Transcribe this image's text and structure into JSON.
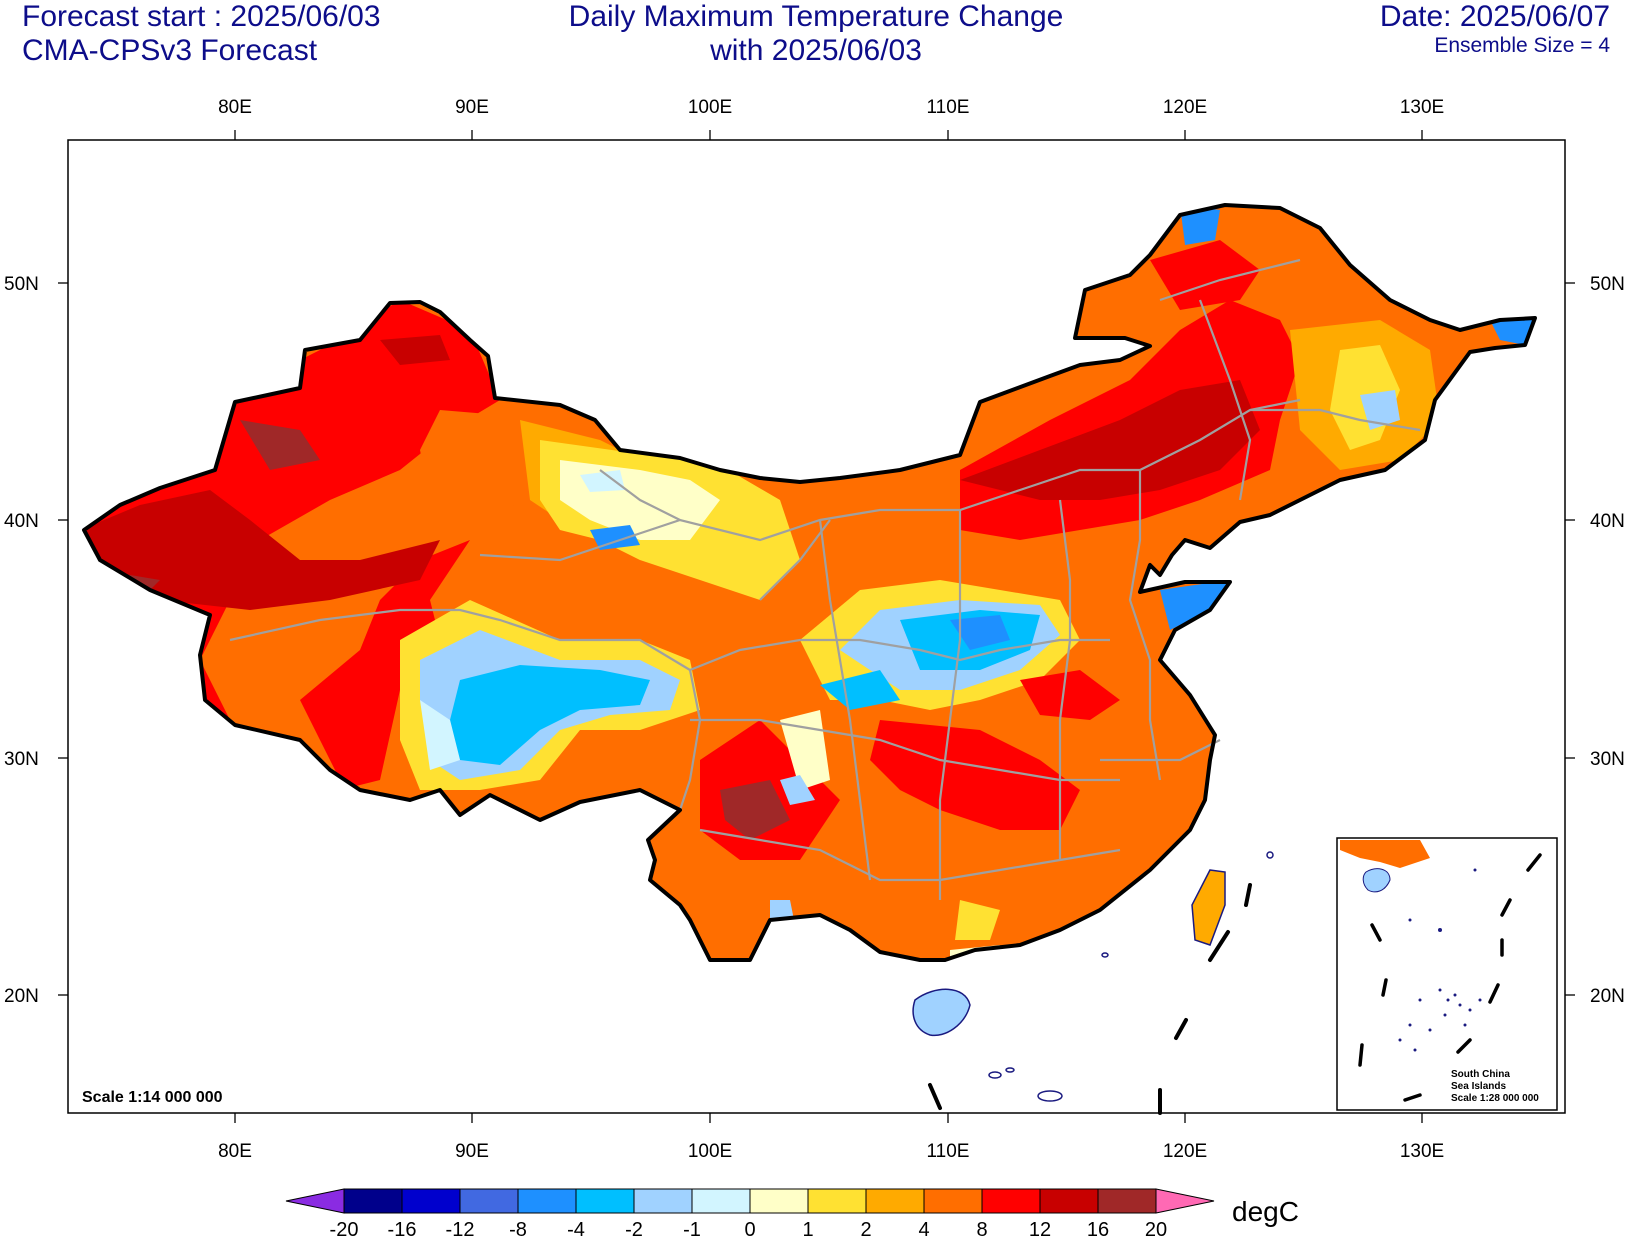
{
  "header": {
    "left_line1": "Forecast start : 2025/06/03",
    "left_line2": "CMA-CPSv3 Forecast",
    "title_line1": "Daily Maximum Temperature Change",
    "title_line2": "with 2025/06/03",
    "date": "Date: 2025/06/07",
    "ensemble": "Ensemble Size = 4"
  },
  "axes": {
    "lon_ticks": [
      "80E",
      "90E",
      "100E",
      "110E",
      "120E",
      "130E"
    ],
    "lat_ticks": [
      "50N",
      "40N",
      "30N",
      "20N"
    ]
  },
  "scale_main": "Scale 1:14 000 000",
  "inset": {
    "line1": "South China",
    "line2": "Sea Islands",
    "line3": "Scale 1:28 000 000"
  },
  "colorbar": {
    "units": "degC",
    "labels": [
      "-20",
      "-16",
      "-12",
      "-8",
      "-4",
      "-2",
      "-1",
      "0",
      "1",
      "2",
      "4",
      "8",
      "12",
      "16",
      "20"
    ],
    "colors": [
      "#8a2be2",
      "#00008b",
      "#0000cd",
      "#4169e1",
      "#1e90ff",
      "#00bfff",
      "#a0d2ff",
      "#d2f5ff",
      "#ffffc8",
      "#ffe132",
      "#ffaa00",
      "#ff6e00",
      "#ff0000",
      "#c80000",
      "#a02828",
      "#ff69b4"
    ]
  },
  "colors": {
    "title": "#0d0d8a",
    "border": "#000000",
    "province": "#a0a0a0"
  }
}
